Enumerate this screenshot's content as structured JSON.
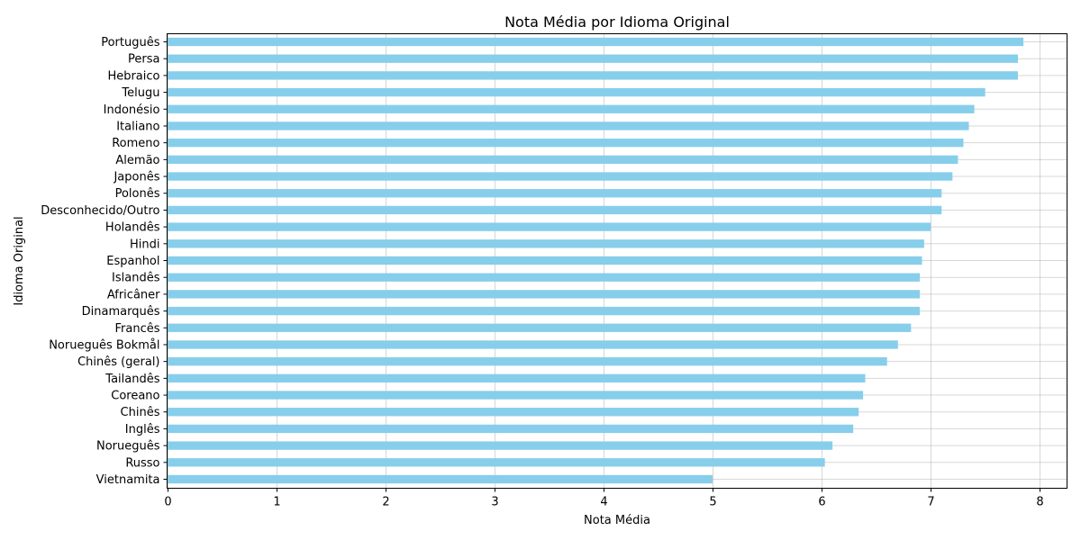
{
  "chart_data": {
    "type": "bar",
    "orientation": "horizontal",
    "title": "Nota Média por Idioma Original",
    "xlabel": "Nota Média",
    "ylabel": "Idioma Original",
    "xlim": [
      0,
      8.25
    ],
    "x_ticks": [
      0,
      1,
      2,
      3,
      4,
      5,
      6,
      7,
      8
    ],
    "grid": true,
    "bar_color": "#87ceeb",
    "categories": [
      "Português",
      "Persa",
      "Hebraico",
      "Telugu",
      "Indonésio",
      "Italiano",
      "Romeno",
      "Alemão",
      "Japonês",
      "Polonês",
      "Desconhecido/Outro",
      "Holandês",
      "Hindi",
      "Espanhol",
      "Islandês",
      "Africâner",
      "Dinamarquês",
      "Francês",
      "Norueguês Bokmål",
      "Chinês (geral)",
      "Tailandês",
      "Coreano",
      "Chinês",
      "Inglês",
      "Norueguês",
      "Russo",
      "Vietnamita"
    ],
    "values": [
      7.85,
      7.8,
      7.8,
      7.5,
      7.4,
      7.35,
      7.3,
      7.25,
      7.2,
      7.1,
      7.1,
      7.0,
      6.94,
      6.92,
      6.9,
      6.9,
      6.9,
      6.82,
      6.7,
      6.6,
      6.4,
      6.38,
      6.34,
      6.29,
      6.1,
      6.03,
      5.0
    ]
  }
}
